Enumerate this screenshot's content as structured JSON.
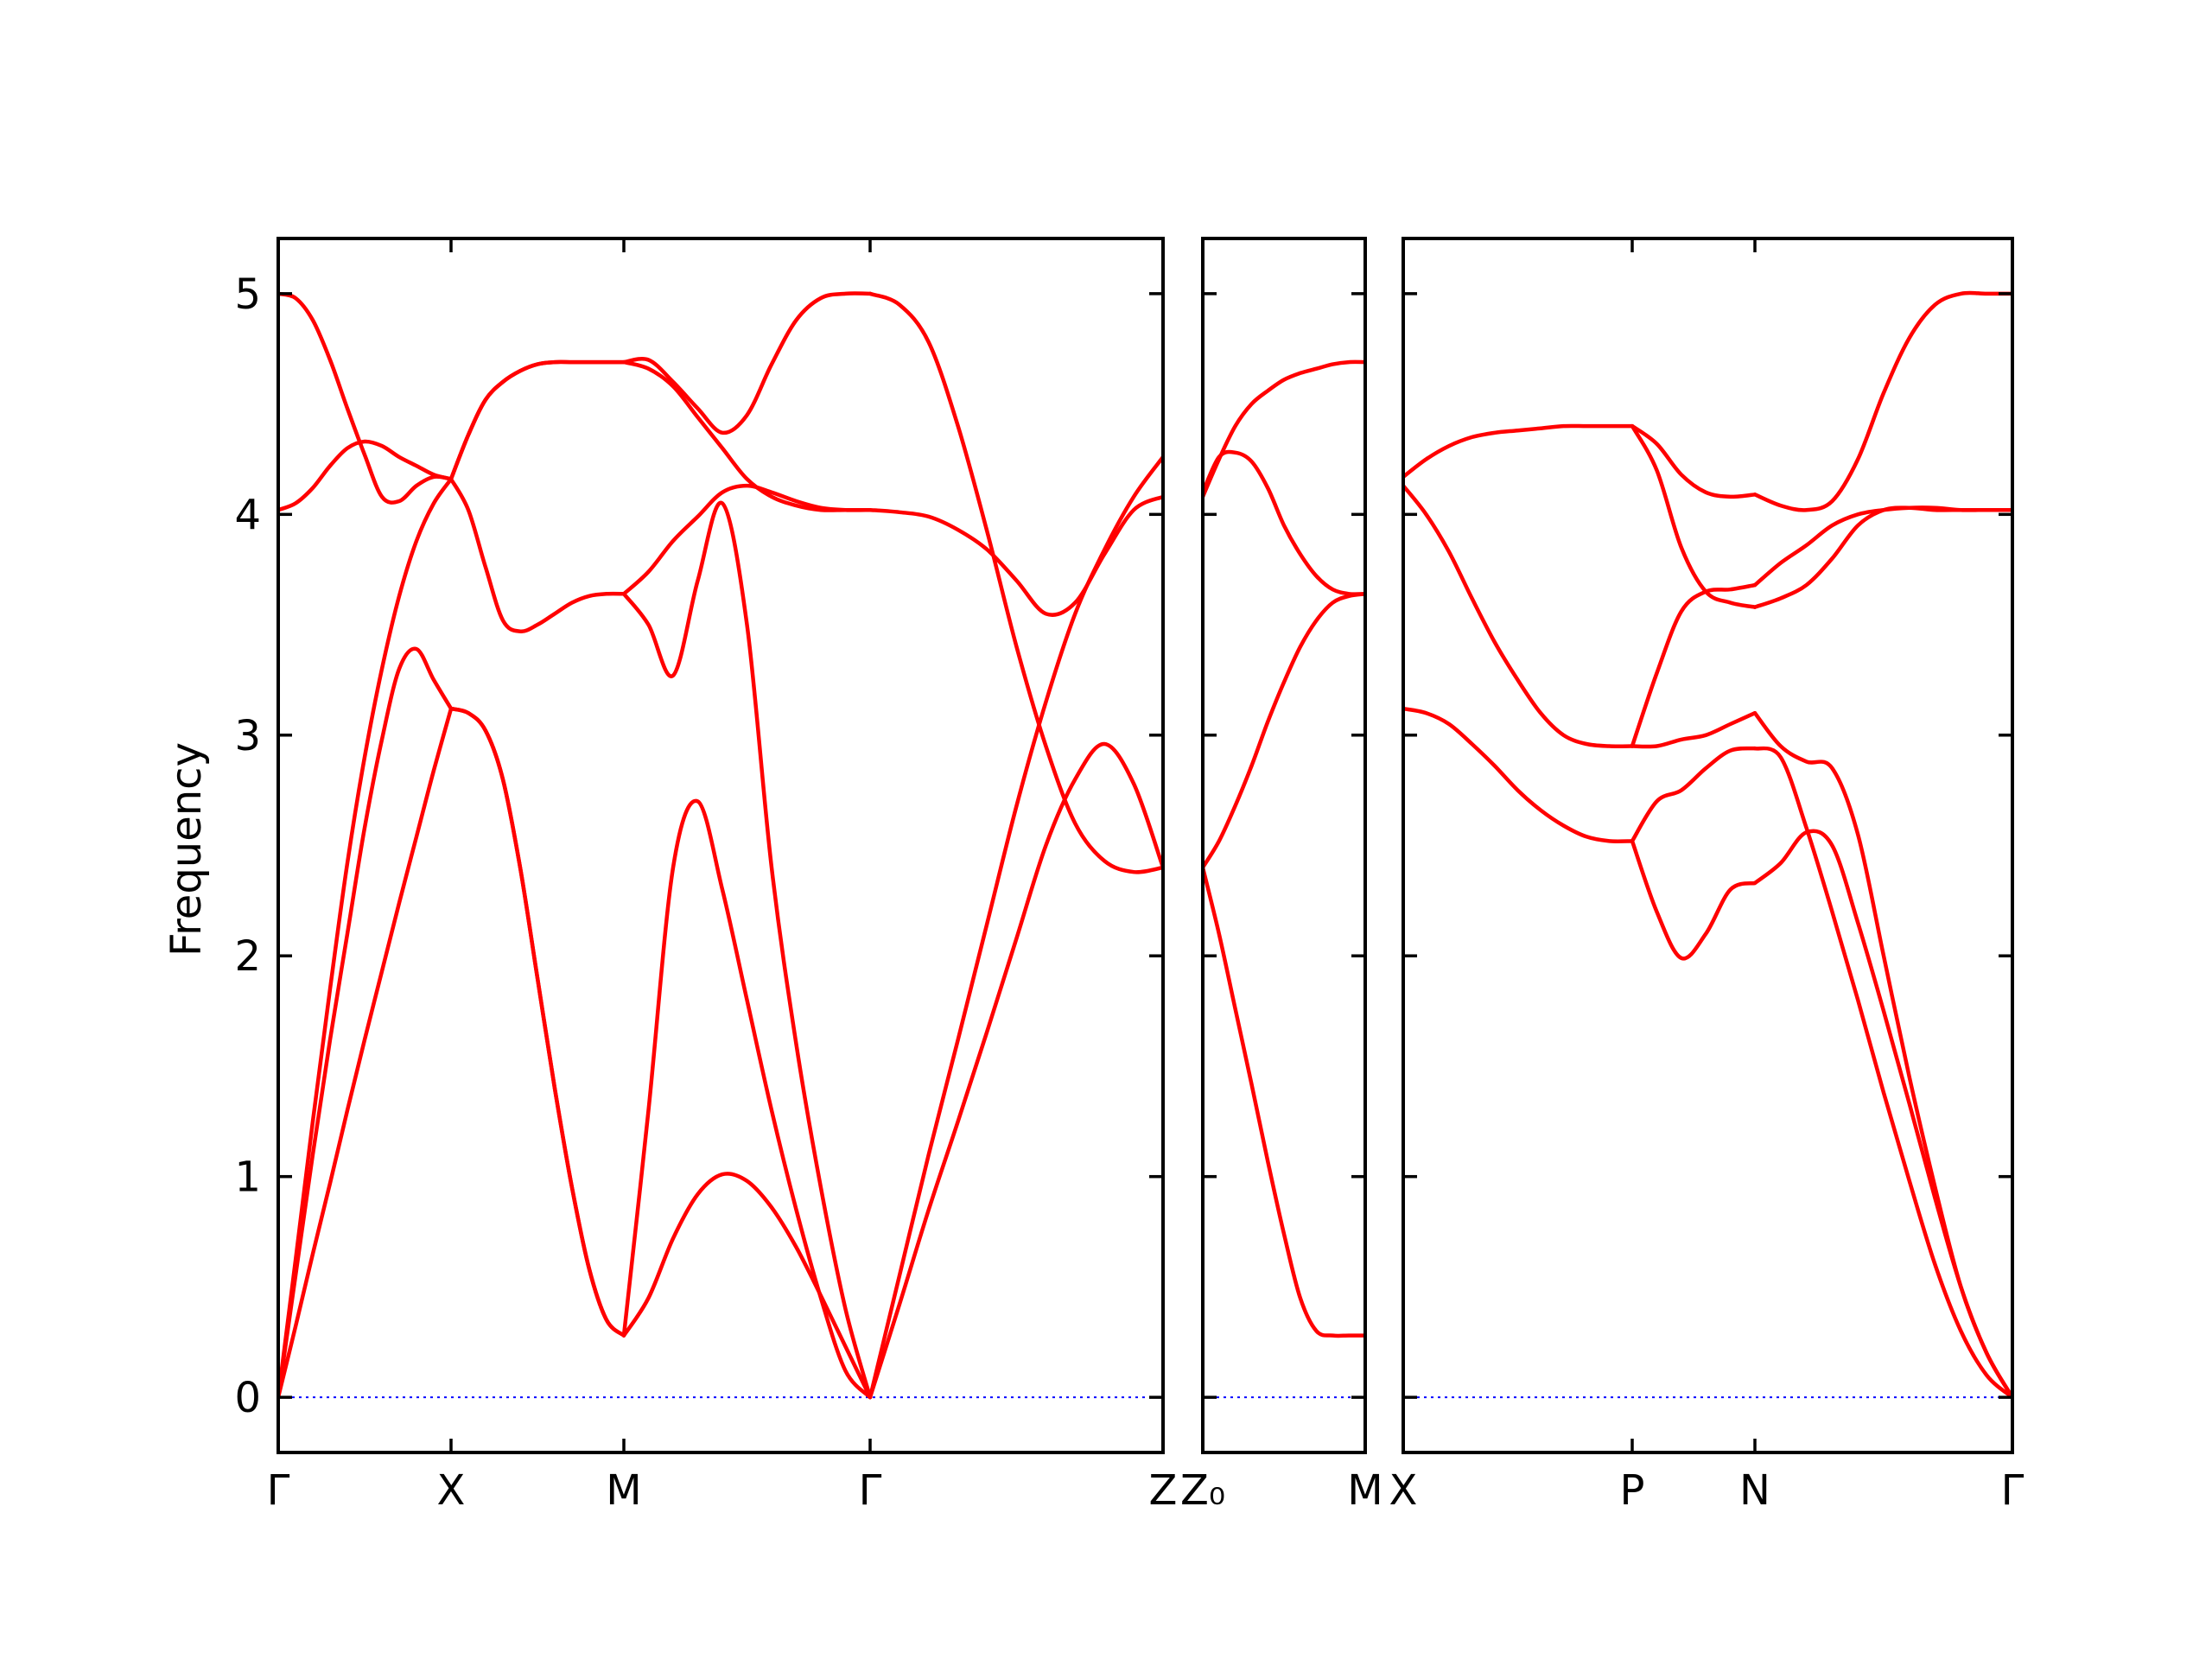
{
  "chart_data": {
    "type": "line",
    "ylabel": "Frequency",
    "ylim": [
      -0.25,
      5.25
    ],
    "yticks": [
      0,
      1,
      2,
      3,
      4,
      5
    ],
    "colors": {
      "bands": "#ff0000",
      "zero_line": "#0000ff"
    },
    "panels": [
      {
        "segments": [
          {
            "from": "Γ",
            "to": "X",
            "x": [
              0,
              0.1,
              0.2,
              0.3,
              0.4,
              0.5,
              0.6,
              0.7,
              0.8,
              0.9,
              1
            ],
            "bands": [
              [
                0,
                0.32,
                0.65,
                0.97,
                1.3,
                1.62,
                1.93,
                2.24,
                2.54,
                2.84,
                3.12
              ],
              [
                0,
                0.55,
                1.1,
                1.62,
                2.1,
                2.58,
                2.98,
                3.3,
                3.39,
                3.25,
                3.12
              ],
              [
                0,
                0.62,
                1.25,
                1.85,
                2.42,
                2.9,
                3.3,
                3.63,
                3.88,
                4.05,
                4.16
              ],
              [
                4.02,
                4.05,
                4.12,
                4.22,
                4.3,
                4.33,
                4.31,
                4.26,
                4.22,
                4.18,
                4.16
              ],
              [
                5,
                4.98,
                4.88,
                4.7,
                4.48,
                4.27,
                4.08,
                4.06,
                4.13,
                4.17,
                4.16
              ]
            ]
          },
          {
            "from": "X",
            "to": "M",
            "x": [
              0,
              0.1,
              0.2,
              0.3,
              0.4,
              0.5,
              0.6,
              0.7,
              0.8,
              0.9,
              1
            ],
            "bands": [
              [
                3.12,
                3.1,
                3.02,
                2.8,
                2.4,
                1.9,
                1.4,
                0.95,
                0.58,
                0.35,
                0.28
              ],
              [
                3.12,
                3.1,
                3.02,
                2.8,
                2.4,
                1.9,
                1.4,
                0.95,
                0.58,
                0.35,
                0.28
              ],
              [
                4.16,
                4.02,
                3.76,
                3.52,
                3.47,
                3.5,
                3.55,
                3.6,
                3.63,
                3.64,
                3.64
              ],
              [
                4.16,
                4.36,
                4.52,
                4.6,
                4.65,
                4.68,
                4.69,
                4.69,
                4.69,
                4.69,
                4.69
              ],
              [
                4.16,
                4.36,
                4.52,
                4.6,
                4.65,
                4.68,
                4.69,
                4.69,
                4.69,
                4.69,
                4.69
              ]
            ]
          },
          {
            "from": "M",
            "to": "Γ",
            "x": [
              0,
              0.1,
              0.2,
              0.3,
              0.4,
              0.5,
              0.6,
              0.7,
              0.8,
              0.9,
              1
            ],
            "bands": [
              [
                0.28,
                0.45,
                0.72,
                0.92,
                1.01,
                0.98,
                0.86,
                0.68,
                0.46,
                0.23,
                0
              ],
              [
                0.28,
                1.3,
                2.4,
                2.7,
                2.3,
                1.8,
                1.3,
                0.85,
                0.45,
                0.12,
                0
              ],
              [
                3.64,
                3.5,
                3.27,
                3.7,
                4.05,
                3.5,
                2.4,
                1.6,
                0.95,
                0.4,
                0
              ],
              [
                3.64,
                3.74,
                3.88,
                3.99,
                4.1,
                4.13,
                4.1,
                4.06,
                4.03,
                4.02,
                4.02
              ],
              [
                4.69,
                4.7,
                4.6,
                4.48,
                4.37,
                4.45,
                4.68,
                4.88,
                4.98,
                5.0,
                5.0
              ],
              [
                4.69,
                4.66,
                4.58,
                4.44,
                4.3,
                4.16,
                4.08,
                4.04,
                4.02,
                4.02,
                4.02
              ]
            ]
          },
          {
            "from": "Γ",
            "to": "Z",
            "x": [
              0,
              0.1,
              0.2,
              0.3,
              0.4,
              0.5,
              0.6,
              0.7,
              0.8,
              0.9,
              1
            ],
            "bands": [
              [
                0,
                0.42,
                0.85,
                1.25,
                1.66,
                2.08,
                2.5,
                2.8,
                2.96,
                2.78,
                2.4
              ],
              [
                0,
                0.55,
                1.1,
                1.62,
                2.15,
                2.68,
                3.15,
                3.55,
                3.84,
                4.08,
                4.26
              ],
              [
                4.02,
                4.01,
                3.99,
                3.93,
                3.84,
                3.7,
                3.55,
                3.6,
                3.82,
                4.02,
                4.08
              ],
              [
                5.0,
                4.95,
                4.78,
                4.4,
                3.92,
                3.4,
                2.95,
                2.6,
                2.43,
                2.38,
                2.4
              ]
            ]
          }
        ]
      },
      {
        "segments": [
          {
            "from": "Z₀",
            "to": "M",
            "x": [
              0,
              0.1,
              0.2,
              0.3,
              0.4,
              0.5,
              0.6,
              0.7,
              0.8,
              0.9,
              1
            ],
            "bands": [
              [
                2.4,
                2.1,
                1.76,
                1.42,
                1.07,
                0.74,
                0.45,
                0.3,
                0.28,
                0.28,
                0.28
              ],
              [
                2.4,
                2.52,
                2.68,
                2.86,
                3.06,
                3.24,
                3.4,
                3.52,
                3.6,
                3.63,
                3.64
              ],
              [
                4.1,
                4.26,
                4.28,
                4.24,
                4.12,
                3.95,
                3.82,
                3.72,
                3.66,
                3.64,
                3.64
              ],
              [
                4.08,
                4.25,
                4.4,
                4.5,
                4.56,
                4.61,
                4.64,
                4.66,
                4.68,
                4.69,
                4.69
              ]
            ]
          }
        ]
      },
      {
        "segments": [
          {
            "from": "X",
            "to": "P",
            "x": [
              0,
              0.1,
              0.2,
              0.3,
              0.4,
              0.5,
              0.6,
              0.7,
              0.8,
              0.9,
              1
            ],
            "bands": [
              [
                3.12,
                3.1,
                3.05,
                2.96,
                2.86,
                2.75,
                2.66,
                2.59,
                2.54,
                2.52,
                2.52
              ],
              [
                4.13,
                4.0,
                3.83,
                3.62,
                3.42,
                3.25,
                3.1,
                3.0,
                2.96,
                2.95,
                2.95
              ],
              [
                4.17,
                4.25,
                4.31,
                4.35,
                4.37,
                4.38,
                4.39,
                4.4,
                4.4,
                4.4,
                4.4
              ]
            ]
          },
          {
            "from": "P",
            "to": "N",
            "x": [
              0,
              0.2,
              0.4,
              0.6,
              0.8,
              1
            ],
            "bands": [
              [
                2.52,
                2.2,
                1.99,
                2.1,
                2.3,
                2.33
              ],
              [
                2.52,
                2.7,
                2.75,
                2.85,
                2.93,
                2.94
              ],
              [
                2.95,
                2.95,
                2.98,
                3.0,
                3.05,
                3.1
              ],
              [
                2.95,
                3.28,
                3.56,
                3.65,
                3.66,
                3.68
              ],
              [
                4.4,
                4.2,
                3.85,
                3.65,
                3.6,
                3.58
              ],
              [
                4.4,
                4.32,
                4.18,
                4.1,
                4.08,
                4.09
              ]
            ]
          },
          {
            "from": "N",
            "to": "Γ",
            "x": [
              0,
              0.1,
              0.2,
              0.3,
              0.4,
              0.5,
              0.6,
              0.7,
              0.8,
              0.9,
              1
            ],
            "bands": [
              [
                2.33,
                2.42,
                2.56,
                2.5,
                2.15,
                1.75,
                1.33,
                0.9,
                0.5,
                0.2,
                0
              ],
              [
                2.94,
                2.9,
                2.58,
                2.2,
                1.8,
                1.38,
                0.98,
                0.6,
                0.3,
                0.1,
                0
              ],
              [
                3.1,
                2.95,
                2.88,
                2.85,
                2.55,
                2.0,
                1.45,
                0.95,
                0.5,
                0.2,
                0
              ],
              [
                3.68,
                3.78,
                3.86,
                3.95,
                4.0,
                4.02,
                4.03,
                4.03,
                4.02,
                4.02,
                4.02
              ],
              [
                3.58,
                3.62,
                3.68,
                3.8,
                3.95,
                4.02,
                4.03,
                4.02,
                4.02,
                4.02,
                4.02
              ],
              [
                4.09,
                4.04,
                4.02,
                4.06,
                4.25,
                4.55,
                4.8,
                4.95,
                5.0,
                5.0,
                5.0
              ]
            ]
          }
        ]
      }
    ],
    "panel_xtick_labels": [
      [
        "Γ",
        "X",
        "M",
        "Γ",
        "Z"
      ],
      [
        "Z₀",
        "M"
      ],
      [
        "X",
        "P",
        "N",
        "Γ"
      ]
    ]
  }
}
